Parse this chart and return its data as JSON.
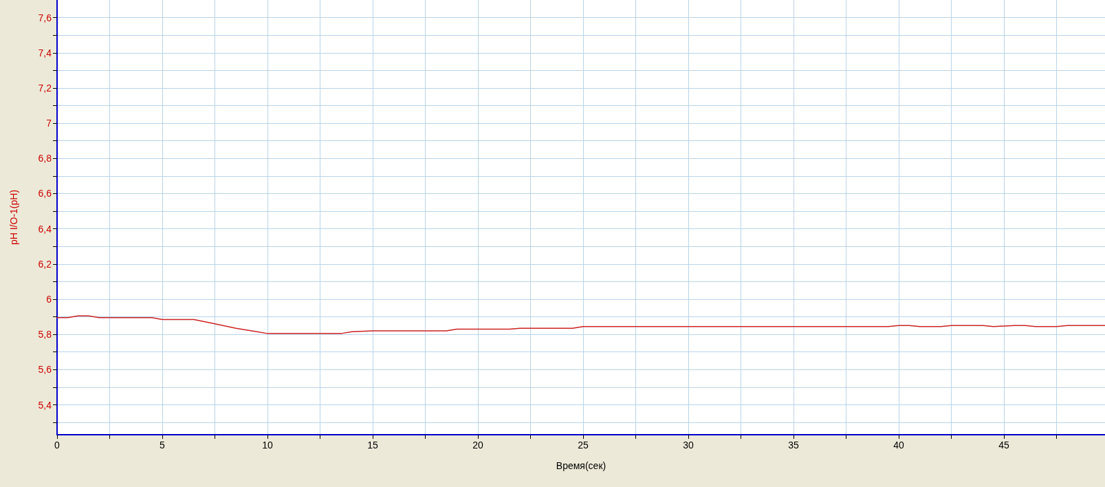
{
  "chart_data": {
    "type": "line",
    "xlabel": "Время(сек)",
    "ylabel": "pH I/O-1(pH)",
    "x": [
      0,
      0.5,
      1,
      1.5,
      2,
      4.5,
      5,
      6.5,
      7.5,
      8.5,
      9.5,
      10,
      13.5,
      14,
      15,
      18.5,
      19,
      21.5,
      22,
      24.5,
      25,
      39.5,
      40,
      40.5,
      41,
      42,
      42.5,
      44,
      44.5,
      45.5,
      46,
      46.5,
      47.5,
      48,
      49.8
    ],
    "series": [
      {
        "color": "#cc2222",
        "values": [
          5.895,
          5.895,
          5.905,
          5.905,
          5.895,
          5.895,
          5.885,
          5.885,
          5.86,
          5.835,
          5.815,
          5.805,
          5.805,
          5.815,
          5.82,
          5.82,
          5.83,
          5.83,
          5.835,
          5.835,
          5.845,
          5.845,
          5.85,
          5.85,
          5.845,
          5.845,
          5.85,
          5.85,
          5.845,
          5.85,
          5.85,
          5.845,
          5.845,
          5.85,
          5.85
        ]
      }
    ],
    "xlim": [
      0,
      49.8
    ],
    "ylim": [
      5.23,
      7.7
    ],
    "xticks": [
      0,
      {
        "value": 2.5,
        "label": null
      },
      5,
      {
        "value": 7.5,
        "label": null
      },
      10,
      {
        "value": 12.5,
        "label": null
      },
      15,
      {
        "value": 17.5,
        "label": null
      },
      20,
      {
        "value": 22.5,
        "label": null
      },
      25,
      {
        "value": 27.5,
        "label": null
      },
      30,
      {
        "value": 32.5,
        "label": null
      },
      35,
      {
        "value": 37.5,
        "label": null
      },
      40,
      {
        "value": 42.5,
        "label": null
      },
      45,
      {
        "value": 47.5,
        "label": null
      }
    ],
    "yticks": [
      {
        "value": 5.3,
        "label": null
      },
      {
        "value": 5.4,
        "label": "5,4"
      },
      {
        "value": 5.5,
        "label": null
      },
      {
        "value": 5.6,
        "label": "5,6"
      },
      {
        "value": 5.7,
        "label": null
      },
      {
        "value": 5.8,
        "label": "5,8"
      },
      {
        "value": 5.9,
        "label": null
      },
      {
        "value": 6,
        "label": "6"
      },
      {
        "value": 6.1,
        "label": null
      },
      {
        "value": 6.2,
        "label": "6,2"
      },
      {
        "value": 6.3,
        "label": null
      },
      {
        "value": 6.4,
        "label": "6,4"
      },
      {
        "value": 6.5,
        "label": null
      },
      {
        "value": 6.6,
        "label": "6,6"
      },
      {
        "value": 6.7,
        "label": null
      },
      {
        "value": 6.8,
        "label": "6,8"
      },
      {
        "value": 6.9,
        "label": null
      },
      {
        "value": 7,
        "label": "7"
      },
      {
        "value": 7.1,
        "label": null
      },
      {
        "value": 7.2,
        "label": "7,2"
      },
      {
        "value": 7.3,
        "label": null
      },
      {
        "value": 7.4,
        "label": "7,4"
      },
      {
        "value": 7.5,
        "label": null
      },
      {
        "value": 7.6,
        "label": "7,6"
      }
    ],
    "grid": true,
    "marker": "none",
    "line_style": "solid"
  }
}
